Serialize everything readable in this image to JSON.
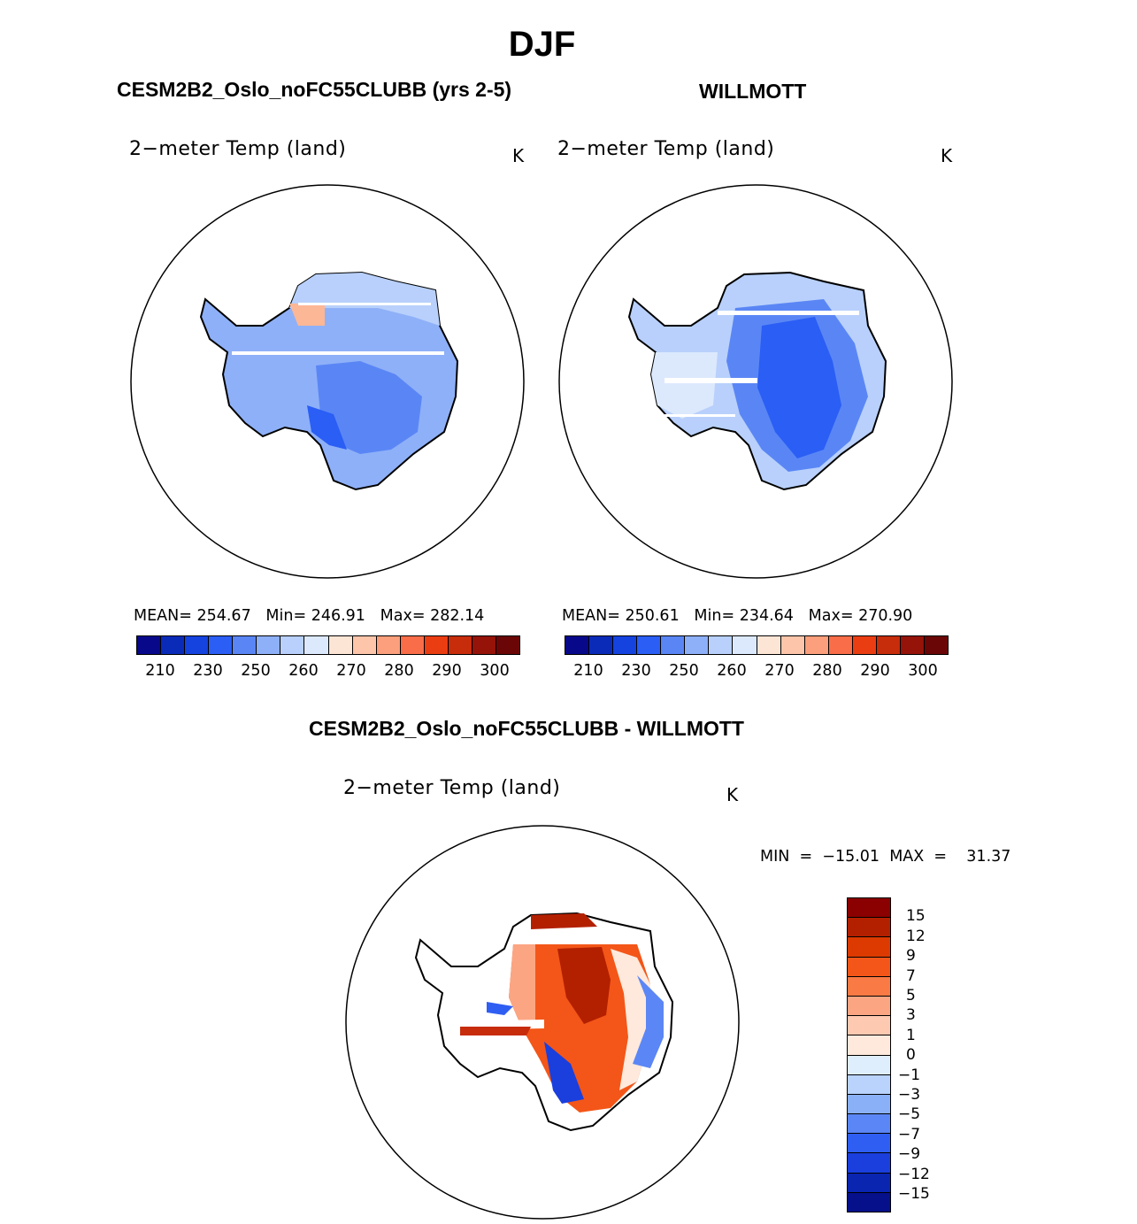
{
  "main_title": "DJF",
  "panels": [
    {
      "title": "CESM2B2_Oslo_noFC55CLUBB (yrs 2-5)",
      "variable": "2−meter Temp (land)",
      "units": "K",
      "mean_label": "MEAN=",
      "mean": "254.67",
      "min_label": "Min=",
      "min": "246.91",
      "max_label": "Max=",
      "max": "282.14"
    },
    {
      "title": "WILLMOTT",
      "variable": "2−meter Temp (land)",
      "units": "K",
      "mean_label": "MEAN=",
      "mean": "250.61",
      "min_label": "Min=",
      "min": "234.64",
      "max_label": "Max=",
      "max": "270.90"
    }
  ],
  "colorbar_abs": {
    "colors": [
      "#08088a",
      "#0a2bb8",
      "#1543e0",
      "#2a5ef5",
      "#5a86f5",
      "#8eb0f8",
      "#b8d0fb",
      "#dce9fd",
      "#fde5d6",
      "#fdc6ab",
      "#fc9f7c",
      "#f96d49",
      "#eb3d12",
      "#c72c0b",
      "#951308",
      "#6b0606"
    ],
    "ticks": [
      "210",
      "230",
      "250",
      "260",
      "270",
      "280",
      "290",
      "300"
    ]
  },
  "diff": {
    "title": "CESM2B2_Oslo_noFC55CLUBB - WILLMOTT",
    "variable": "2−meter Temp (land)",
    "units": "K",
    "min_label": "MIN",
    "min": "−15.01",
    "max_label": "MAX",
    "max": "31.37"
  },
  "colorbar_diff": {
    "colors": [
      "#8b0000",
      "#b32000",
      "#dc3a00",
      "#f35618",
      "#fa7a45",
      "#fca582",
      "#fdc9b0",
      "#fee9dc",
      "#dfeefd",
      "#b9d3fc",
      "#8ab0f8",
      "#5b86f5",
      "#2f5ef3",
      "#1a3fdd",
      "#0a25b0",
      "#05108a"
    ],
    "ticks": [
      "15",
      "12",
      "9",
      "7",
      "5",
      "3",
      "1",
      "0",
      "−1",
      "−3",
      "−5",
      "−7",
      "−9",
      "−12",
      "−15"
    ]
  }
}
